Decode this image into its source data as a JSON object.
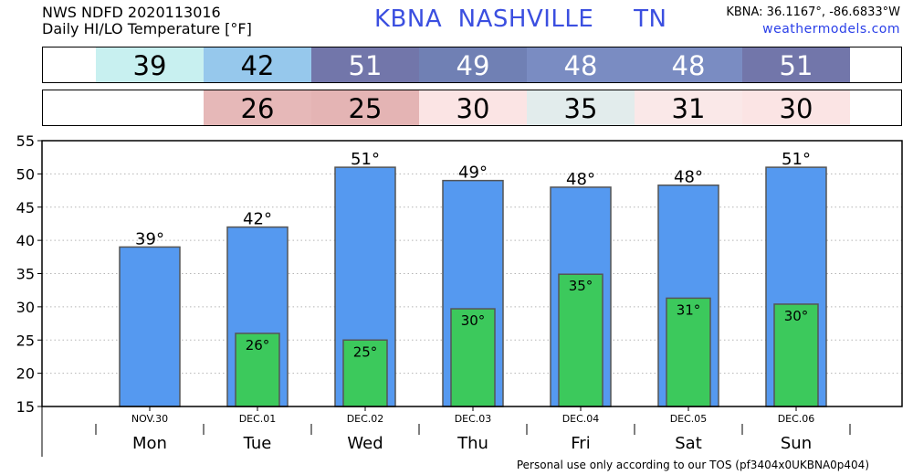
{
  "header": {
    "line1": "NWS NDFD 2020113016",
    "line2": "Daily HI/LO Temperature [°F]",
    "station": "KBNA  NASHVILLE     TN",
    "coords": "KBNA: 36.1167°, -86.6833°W",
    "site": "weathermodels.com"
  },
  "strips": {
    "hi": [
      {
        "value": "39",
        "color": "#c8f0f0",
        "text_color": "#000000"
      },
      {
        "value": "42",
        "color": "#96c8ec",
        "text_color": "#000000"
      },
      {
        "value": "51",
        "color": "#7276aa",
        "text_color": "#ffffff"
      },
      {
        "value": "49",
        "color": "#7080b4",
        "text_color": "#ffffff"
      },
      {
        "value": "48",
        "color": "#7a8cc2",
        "text_color": "#ffffff"
      },
      {
        "value": "48",
        "color": "#7a8cc2",
        "text_color": "#ffffff"
      },
      {
        "value": "51",
        "color": "#7276aa",
        "text_color": "#ffffff"
      }
    ],
    "lo": [
      {
        "value": "",
        "color": "#ffffff",
        "text_color": "#000000"
      },
      {
        "value": "26",
        "color": "#e6b8b8",
        "text_color": "#000000"
      },
      {
        "value": "25",
        "color": "#e4b4b4",
        "text_color": "#000000"
      },
      {
        "value": "30",
        "color": "#fbe4e4",
        "text_color": "#000000"
      },
      {
        "value": "35",
        "color": "#e2ecec",
        "text_color": "#000000"
      },
      {
        "value": "31",
        "color": "#fae8e8",
        "text_color": "#000000"
      },
      {
        "value": "30",
        "color": "#fbe4e4",
        "text_color": "#000000"
      }
    ]
  },
  "chart_data": {
    "type": "bar",
    "categories": [
      "NOV.30",
      "DEC.01",
      "DEC.02",
      "DEC.03",
      "DEC.04",
      "DEC.05",
      "DEC.06"
    ],
    "days": [
      "Mon",
      "Tue",
      "Wed",
      "Thu",
      "Fri",
      "Sat",
      "Sun"
    ],
    "series": [
      {
        "name": "HI",
        "color": "#5599f0",
        "values": [
          39,
          42,
          51,
          49,
          48,
          48.3,
          51
        ],
        "labels": [
          "39°",
          "42°",
          "51°",
          "49°",
          "48°",
          "48°",
          "51°"
        ]
      },
      {
        "name": "LO",
        "color": "#3cc95c",
        "values": [
          null,
          26,
          25,
          29.7,
          34.9,
          31.3,
          30.4
        ],
        "labels": [
          "",
          "26°",
          "25°",
          "30°",
          "35°",
          "31°",
          "30°"
        ]
      }
    ],
    "yticks": [
      15,
      20,
      25,
      30,
      35,
      40,
      45,
      50,
      55
    ],
    "ylim": [
      15,
      55
    ],
    "grid": true
  },
  "footer": "Personal use only according to our TOS (pf3404x0UKBNA0p404)"
}
